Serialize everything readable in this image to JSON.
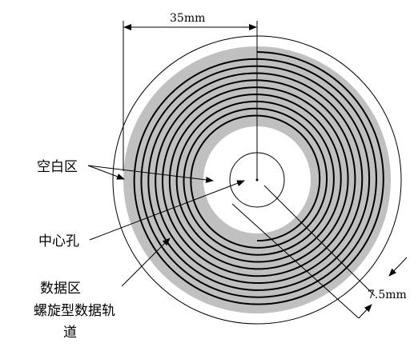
{
  "diagram": {
    "labels": {
      "radius_dimension": "35mm",
      "blank_zone": "空白区",
      "center_hole": "中心孔",
      "data_zone": "数据区",
      "spiral_track_line1": "螺旋型数据轨",
      "spiral_track_line2": "道",
      "gap_dimension": "7.5mm"
    },
    "colors": {
      "data_zone_fill": "#c0c0c0",
      "track_stroke": "#000000",
      "outline_stroke": "#000000",
      "background": "#ffffff"
    }
  }
}
